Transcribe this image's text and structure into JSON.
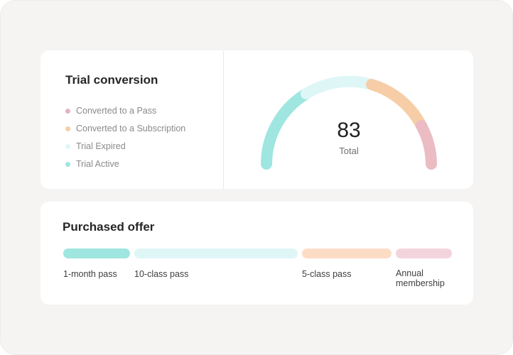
{
  "trial": {
    "title": "Trial conversion",
    "legend": [
      {
        "label": "Converted to a Pass",
        "color": "#e2b4bf"
      },
      {
        "label": "Converted to a Subscription",
        "color": "#f6cda6"
      },
      {
        "label": "Trial Expired",
        "color": "#dff6f7"
      },
      {
        "label": "Trial Active",
        "color": "#9ee6df"
      }
    ],
    "total_value": "83",
    "total_label": "Total"
  },
  "offer": {
    "title": "Purchased offer",
    "items": [
      {
        "label": "1-month pass",
        "color": "#9ee6df"
      },
      {
        "label": "10-class pass",
        "color": "#dff6f7"
      },
      {
        "label": "5-class pass",
        "color": "#fddcc6"
      },
      {
        "label": "Annual membership",
        "color": "#f4d4dc"
      }
    ]
  }
}
